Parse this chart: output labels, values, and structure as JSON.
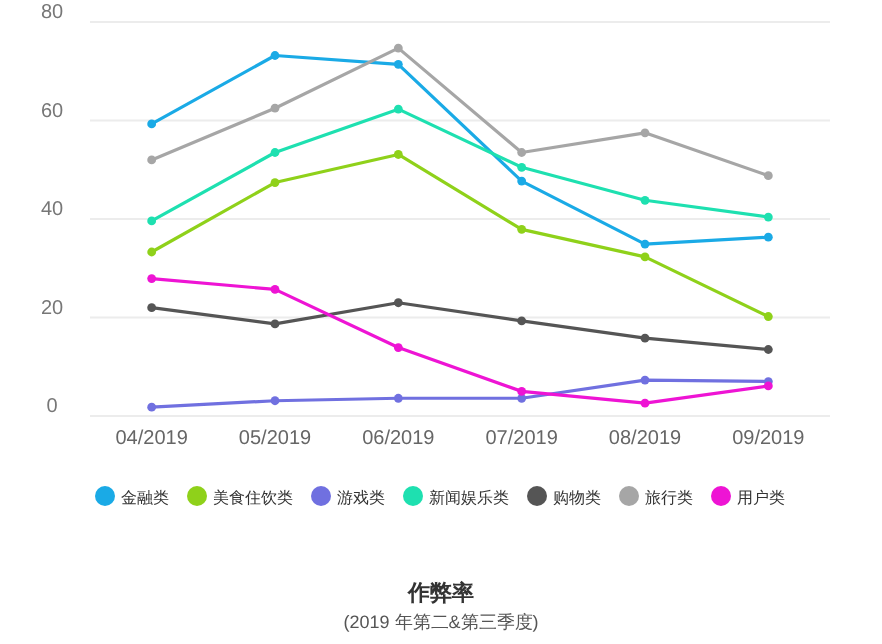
{
  "chart_data": {
    "type": "line",
    "title": "作弊率",
    "subtitle": "(2019 年第二&第三季度)",
    "categories": [
      "04/2019",
      "05/2019",
      "06/2019",
      "07/2019",
      "08/2019",
      "09/2019"
    ],
    "series": [
      {
        "name": "金融类",
        "color": "#1aaae6",
        "values": [
          59.3,
          73.2,
          71.4,
          47.7,
          34.9,
          36.3
        ]
      },
      {
        "name": "美食住饮类",
        "color": "#8fd11a",
        "values": [
          33.3,
          47.4,
          53.1,
          37.9,
          32.3,
          20.2
        ]
      },
      {
        "name": "游戏类",
        "color": "#7070e0",
        "values": [
          1.8,
          3.1,
          3.6,
          3.6,
          7.3,
          7.0
        ]
      },
      {
        "name": "新闻娱乐类",
        "color": "#1ee0b0",
        "values": [
          39.6,
          53.5,
          62.3,
          50.5,
          43.8,
          40.4
        ]
      },
      {
        "name": "购物类",
        "color": "#555555",
        "values": [
          22,
          18.7,
          23,
          19.3,
          15.8,
          13.5
        ]
      },
      {
        "name": "旅行类",
        "color": "#a6a6a6",
        "values": [
          52,
          62.5,
          74.7,
          53.5,
          57.5,
          48.8
        ]
      },
      {
        "name": "用户类",
        "color": "#ee14d4",
        "values": [
          27.9,
          25.7,
          13.9,
          5.0,
          2.6,
          6.1
        ]
      }
    ],
    "ylim": [
      0,
      80
    ],
    "yticks": [
      0,
      20,
      40,
      60,
      80
    ],
    "grid": "y",
    "legend": "bottom",
    "marker": "circle"
  }
}
